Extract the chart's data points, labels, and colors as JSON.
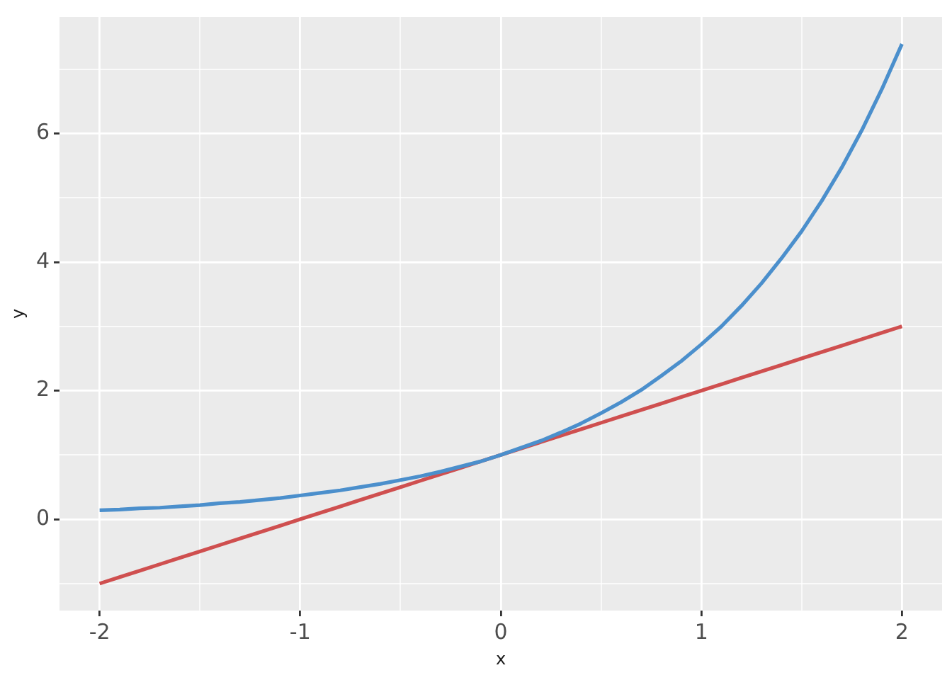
{
  "chart_data": {
    "type": "line",
    "xlabel": "x",
    "ylabel": "y",
    "x": [
      -2,
      -1.9,
      -1.8,
      -1.7,
      -1.6,
      -1.5,
      -1.4,
      -1.3,
      -1.2,
      -1.1,
      -1,
      -0.9,
      -0.8,
      -0.7,
      -0.6,
      -0.5,
      -0.4,
      -0.3,
      -0.2,
      -0.1,
      0,
      0.1,
      0.2,
      0.3,
      0.4,
      0.5,
      0.6,
      0.7,
      0.8,
      0.9,
      1,
      1.1,
      1.2,
      1.3,
      1.4,
      1.5,
      1.6,
      1.7,
      1.8,
      1.9,
      2
    ],
    "series": [
      {
        "color": "#4b8fcc",
        "values": [
          0.14,
          0.15,
          0.17,
          0.18,
          0.2,
          0.22,
          0.25,
          0.27,
          0.3,
          0.33,
          0.37,
          0.41,
          0.45,
          0.5,
          0.55,
          0.61,
          0.67,
          0.74,
          0.82,
          0.9,
          1,
          1.11,
          1.22,
          1.35,
          1.49,
          1.65,
          1.82,
          2.01,
          2.23,
          2.46,
          2.72,
          3,
          3.32,
          3.67,
          4.06,
          4.48,
          4.95,
          5.47,
          6.05,
          6.69,
          7.39
        ]
      },
      {
        "color": "#cf4f4f",
        "values": [
          -1,
          -0.9,
          -0.8,
          -0.7,
          -0.6,
          -0.5,
          -0.4,
          -0.3,
          -0.2,
          -0.1,
          0,
          0.1,
          0.2,
          0.3,
          0.4,
          0.5,
          0.6,
          0.7,
          0.8,
          0.9,
          1,
          1.1,
          1.2,
          1.3,
          1.4,
          1.5,
          1.6,
          1.7,
          1.8,
          1.9,
          2,
          2.1,
          2.2,
          2.3,
          2.4,
          2.5,
          2.6,
          2.7,
          2.8,
          2.9,
          3
        ]
      }
    ],
    "xlim": [
      -2.2,
      2.2
    ],
    "xticks": [
      -2,
      {
        "value": -1.5,
        "label": null
      },
      -1,
      {
        "value": -0.5,
        "label": null
      },
      0,
      {
        "value": 0.5,
        "label": null
      },
      1,
      {
        "value": 1.5,
        "label": null
      },
      2
    ],
    "ylim": [
      -1.42,
      7.81
    ],
    "yticks": [
      {
        "value": -1,
        "label": null
      },
      0,
      {
        "value": 1,
        "label": null
      },
      2,
      {
        "value": 3,
        "label": null
      },
      4,
      {
        "value": 5,
        "label": null
      },
      6,
      {
        "value": 7,
        "label": null
      }
    ],
    "grid": true,
    "line_style": "solid"
  }
}
